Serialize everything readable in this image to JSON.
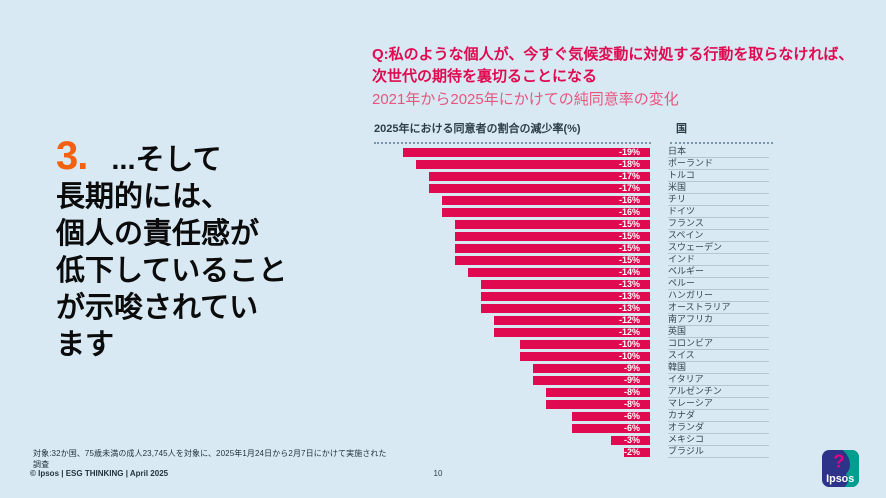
{
  "slide": {
    "background": "#D8E9F4",
    "page_number": "10",
    "copyright": "© Ipsos | ESG THINKING | April 2025",
    "footnote": "対象:32か国、75歳未満の成人23,745人を対象に、2025年1月24日から2月7日にかけて実施された調査",
    "logo_text": "Ipsos"
  },
  "left_panel": {
    "number": "3.",
    "number_color": "#F4610E",
    "headline": "...そして\n長期的には、\n個人の責任感が\n低下していること\nが示唆されてい\nます"
  },
  "chart_data": {
    "type": "bar",
    "orientation": "horizontal",
    "title": "Q:私のような個人が、今すぐ気候変動に対処する行動を取らなければ、\n次世代の期待を裏切ることになる",
    "subtitle": "2021年から2025年にかけての純同意率の変化",
    "col_header_left": "2025年における同意者の割合の減少率(%)",
    "col_header_right": "国",
    "categories": [
      "日本",
      "ポーランド",
      "トルコ",
      "米国",
      "チリ",
      "ドイツ",
      "フランス",
      "スペイン",
      "スウェーデン",
      "インド",
      "ベルギー",
      "ペルー",
      "ハンガリー",
      "オーストラリア",
      "南アフリカ",
      "英国",
      "コロンビア",
      "スイス",
      "韓国",
      "イタリア",
      "アルゼンチン",
      "マレーシア",
      "カナダ",
      "オランダ",
      "メキシコ",
      "ブラジル"
    ],
    "values": [
      -19,
      -18,
      -17,
      -17,
      -16,
      -16,
      -15,
      -15,
      -15,
      -15,
      -14,
      -13,
      -13,
      -13,
      -12,
      -12,
      -10,
      -10,
      -9,
      -9,
      -8,
      -8,
      -6,
      -6,
      -3,
      -2
    ],
    "value_suffix": "%",
    "xlim": [
      -20,
      0
    ],
    "bars_right_aligned": true,
    "grid": false,
    "legend": "none",
    "bar_color": "#E00A50",
    "title_color": "#E00A50",
    "subtitle_color": "#E8567F"
  },
  "logo_colors": {
    "navy": "#2D3389",
    "teal": "#009E8E",
    "magenta": "#E6007E"
  }
}
